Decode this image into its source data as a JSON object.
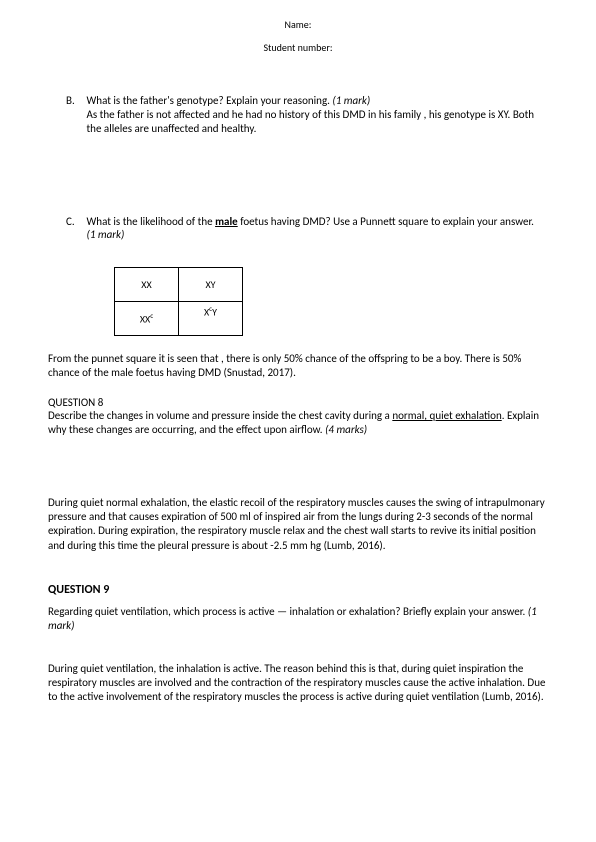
{
  "header": {
    "name_label": "Name:",
    "student_number_label": "Student number:"
  },
  "questionB": {
    "marker": "B.",
    "prompt": "What is the father's genotype? Explain your reasoning.",
    "marks": "(1 mark)",
    "answer": "As the father is not affected and he had no history of this DMD in his family , his  genotype is XY. Both the alleles are unaffected and healthy."
  },
  "questionC": {
    "marker": "C.",
    "prompt_pre": "What is the likelihood of the ",
    "prompt_bold": "male",
    "prompt_post": " foetus having DMD? Use a Punnett square to explain your answer.",
    "marks": "(1 mark)",
    "punnett": {
      "r1c1": "XX",
      "r1c2": "XY",
      "r2c1": "XX",
      "r2c1_sup": "c",
      "r2c2": "X",
      "r2c2_sup": "c",
      "r2c2_post": "Y"
    },
    "answer": "From the punnet square it is seen that , there is only 50% chance of the offspring to be a boy.  There is  50% chance of the male foetus having DMD (Snustad, 2017)."
  },
  "question8": {
    "heading": "QUESTION 8",
    "prompt_pre": "Describe the changes in volume and pressure inside the chest cavity during a ",
    "prompt_underline": "normal, quiet exhalation",
    "prompt_post": ". Explain why these changes are occurring, and the effect upon airflow.",
    "marks": "(4 marks)",
    "answer": "During quiet normal exhalation, the elastic recoil of the respiratory muscles causes the swing of intrapulmonary pressure and that causes expiration of 500 ml of inspired air from the lungs during 2-3 seconds of the normal expiration. During expiration, the respiratory muscle relax and the chest wall starts to revive its initial position and during this time the pleural pressure is about -2.5 mm hg (Lumb, 2016)."
  },
  "question9": {
    "heading": "QUESTION 9",
    "prompt": "Regarding quiet ventilation, which process is active — inhalation or exhalation? Briefly explain your answer.",
    "marks": "(1 mark)",
    "answer": "During quiet ventilation, the inhalation is active. The reason behind this is that, during quiet inspiration the respiratory muscles are involved and the contraction of the respiratory muscles cause the active inhalation. Due to the active  involvement of the respiratory muscles the  process is active during quiet ventilation (Lumb, 2016)."
  }
}
